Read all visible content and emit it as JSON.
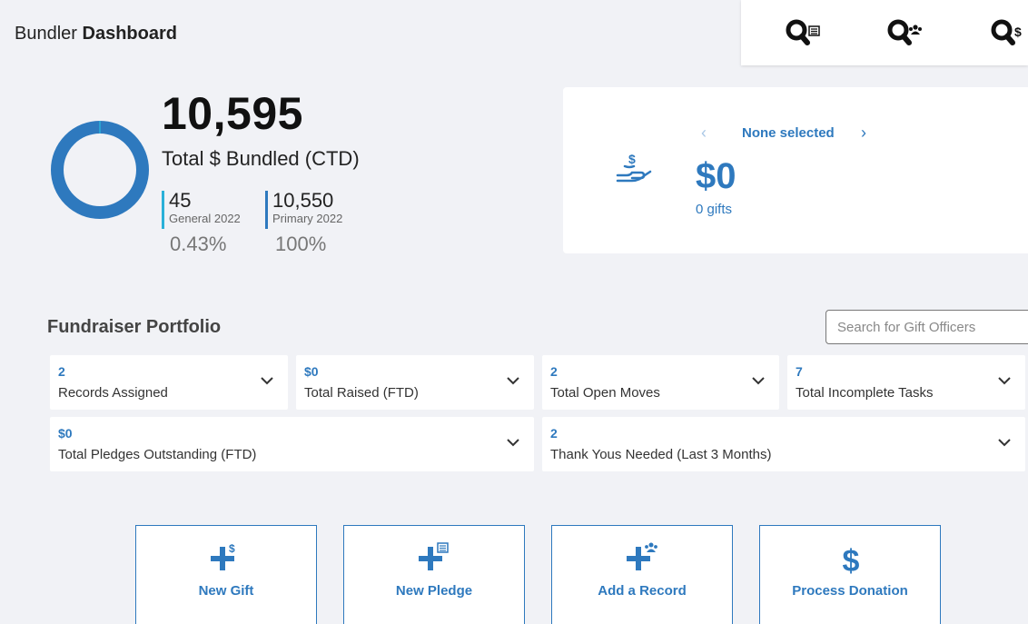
{
  "header": {
    "prefix": "Bundler",
    "title": "Dashboard"
  },
  "quick_search": [
    {
      "icon": "search-document-icon"
    },
    {
      "icon": "search-people-icon"
    },
    {
      "icon": "search-dollar-icon"
    }
  ],
  "summary": {
    "total": "10,595",
    "total_label": "Total $ Bundled (CTD)",
    "donut_fill_percent": 100,
    "stats": [
      {
        "value": "45",
        "label": "General 2022",
        "percent": "0.43%",
        "color": "#2ab0d8"
      },
      {
        "value": "10,550",
        "label": "Primary 2022",
        "percent": "100%",
        "color": "#2e79be"
      }
    ]
  },
  "gift_card": {
    "icon": "hand-money-icon",
    "prev": "‹",
    "selection": "None selected",
    "next": "›",
    "amount": "$0",
    "count": "0 gifts"
  },
  "portfolio": {
    "title": "Fundraiser Portfolio",
    "search_placeholder": "Search for Gift Officers",
    "metrics": [
      {
        "value": "2",
        "label": "Records Assigned"
      },
      {
        "value": "$0",
        "label": "Total Raised (FTD)"
      },
      {
        "value": "2",
        "label": "Total Open Moves"
      },
      {
        "value": "7",
        "label": "Total Incomplete Tasks"
      },
      {
        "value": "$0",
        "label": "Total Pledges Outstanding (FTD)"
      },
      {
        "value": "2",
        "label": "Thank Yous Needed (Last 3 Months)"
      }
    ]
  },
  "actions": [
    {
      "label": "New Gift",
      "icon": "plus-dollar-icon"
    },
    {
      "label": "New Pledge",
      "icon": "plus-document-icon"
    },
    {
      "label": "Add a Record",
      "icon": "plus-people-icon"
    },
    {
      "label": "Process Donation",
      "icon": "dollar-icon"
    }
  ],
  "colors": {
    "accent": "#2e79be",
    "secondary": "#2ab0d8",
    "background": "#f1f2f6"
  }
}
